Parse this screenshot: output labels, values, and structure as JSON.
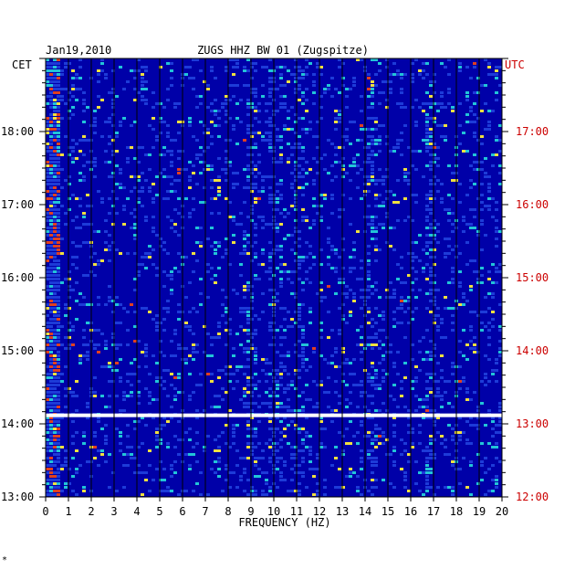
{
  "chart_data": {
    "type": "heatmap",
    "date": "Jan19,2010",
    "title": "ZUGS HHZ BW 01 (Zugspitze)",
    "left_axis_label": "CET",
    "right_axis_label": "UTC",
    "xlabel": "FREQUENCY (HZ)",
    "xlim": [
      0,
      20
    ],
    "x_ticks": [
      "0",
      "1",
      "2",
      "3",
      "4",
      "5",
      "6",
      "7",
      "8",
      "9",
      "10",
      "11",
      "12",
      "13",
      "14",
      "15",
      "16",
      "17",
      "18",
      "19",
      "20"
    ],
    "cet_ticks": [
      "18:00",
      "17:00",
      "16:00",
      "15:00",
      "14:00",
      "13:00"
    ],
    "utc_ticks": [
      "17:00",
      "16:00",
      "15:00",
      "14:00",
      "13:00",
      "12:00"
    ],
    "time_range_cet": [
      "13:00",
      "19:00"
    ],
    "gap_time_cet": "14:07",
    "prominent_bands_hz": [
      0.3,
      9.0,
      10.0,
      11.0,
      14.3,
      16.8
    ],
    "colors": {
      "background": "#0000a8",
      "low": "#1d3bd8",
      "mid": "#22c4d8",
      "high": "#f0e040",
      "peak": "#e04020",
      "grid": "#000000",
      "gap": "#ffffff"
    }
  },
  "footer_mark": "*"
}
